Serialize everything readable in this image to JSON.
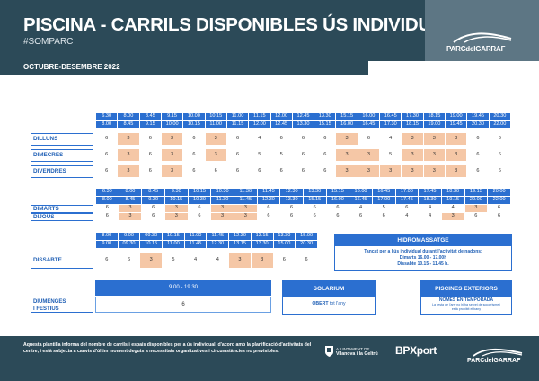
{
  "header": {
    "title": "PISCINA - CARRILS DISPONIBLES ÚS INDIVIDUAL",
    "hashtag": "#SOMPARC",
    "logo": "PARCdelGARRAF",
    "period": "OCTUBRE-DESEMBRE 2022"
  },
  "table1": {
    "starts": [
      "6.30",
      "8.00",
      "8.45",
      "9.15",
      "10.00",
      "10.15",
      "11.00",
      "11.15",
      "12.00",
      "12.45",
      "13.30",
      "15.15",
      "16.00",
      "16.45",
      "17.30",
      "18.15",
      "19.00",
      "19.45",
      "20.30"
    ],
    "ends": [
      "8.00",
      "8.45",
      "9.15",
      "10.00",
      "10.15",
      "11.00",
      "11.15",
      "12.00",
      "12.45",
      "13.30",
      "15.15",
      "16.00",
      "16.45",
      "17.30",
      "18.15",
      "19.00",
      "19.45",
      "20.30",
      "22.00"
    ],
    "rows": [
      {
        "day": "DILLUNS",
        "values": [
          "6",
          "3",
          "6",
          "3",
          "6",
          "3",
          "6",
          "4",
          "6",
          "6",
          "6",
          "3",
          "6",
          "4",
          "3",
          "3",
          "3",
          "6",
          "6"
        ]
      },
      {
        "day": "DIMECRES",
        "values": [
          "6",
          "3",
          "6",
          "3",
          "6",
          "3",
          "6",
          "5",
          "5",
          "6",
          "6",
          "3",
          "3",
          "5",
          "3",
          "3",
          "3",
          "6",
          "6"
        ]
      },
      {
        "day": "DIVENDRES",
        "values": [
          "6",
          "3",
          "6",
          "3",
          "6",
          "6",
          "6",
          "6",
          "6",
          "6",
          "6",
          "3",
          "3",
          "3",
          "3",
          "3",
          "3",
          "6",
          "6"
        ]
      }
    ]
  },
  "table2": {
    "starts": [
      "6.30",
      "8.00",
      "8.45",
      "9.30",
      "10.15",
      "10.30",
      "11.30",
      "11.45",
      "12.30",
      "13.30",
      "15.15",
      "16.00",
      "16.45",
      "17.00",
      "17.45",
      "18.30",
      "19.15",
      "20.00"
    ],
    "ends": [
      "8.00",
      "8.45",
      "9.30",
      "10.15",
      "10.30",
      "11.30",
      "11.45",
      "12.30",
      "13.30",
      "15.15",
      "16.00",
      "16.45",
      "17.00",
      "17.45",
      "18.30",
      "19.15",
      "20.00",
      "22.00"
    ],
    "rows": [
      {
        "day": "DIMARTS",
        "values": [
          "6",
          "3",
          "6",
          "3",
          "6",
          "3",
          "3",
          "6",
          "6",
          "6",
          "6",
          "4",
          "5",
          "6",
          "4",
          "4",
          "3",
          "6"
        ]
      },
      {
        "day": "DIJOUS",
        "values": [
          "6",
          "3",
          "6",
          "3",
          "6",
          "3",
          "3",
          "6",
          "6",
          "6",
          "6",
          "6",
          "6",
          "4",
          "4",
          "3",
          "6",
          "6"
        ]
      }
    ]
  },
  "table3": {
    "starts": [
      "8.00",
      "9.00",
      "09.30",
      "10.15",
      "11.00",
      "11.45",
      "12.30",
      "13.15",
      "13.30",
      "15.00"
    ],
    "ends": [
      "9.00",
      "09.30",
      "10.15",
      "11.00",
      "11.45",
      "12.30",
      "13.15",
      "13.30",
      "15.00",
      "20.30"
    ],
    "rows": [
      {
        "day": "DISSABTE",
        "values": [
          "6",
          "6",
          "3",
          "5",
          "4",
          "4",
          "3",
          "3",
          "6",
          "6"
        ]
      }
    ]
  },
  "hidromassatge": {
    "title": "HIDROMASSATGE",
    "line1": "Tancat per a l'ús individual durant l'activitat de nadons:",
    "line2": "Dimarts 16.00 - 17.00h",
    "line3": "Dissabte 10.15 - 11.45 h."
  },
  "sunday": {
    "hours": "9.00 - 19.30",
    "label_line1": "DIUMENGES",
    "label_line2": "I FESTIUS",
    "value": "6"
  },
  "solarium": {
    "title": "SOLARIUM",
    "text_bold": "OBERT",
    "text_rest": " tot l'any"
  },
  "exteriors": {
    "title": "PISCINES EXTERIORS",
    "line1": "NOMÉS EN TEMPORADA",
    "line2": "La resta de l'any no hi ha servei de socorrisme i",
    "line3": "està prohibit el bany"
  },
  "footer": {
    "text": "Aquesta plantilla informa del nombre de carrils i espais disponibles per a ús individual, d'acord amb la planificació d'activitats del centre, i està subjecta a canvis d'últim moment deguts a necessitats organitzatives i circumstàncies no previsibles.",
    "ajuntament_line1": "AJUNTAMENT DE",
    "ajuntament_line2": "Vilanova i la Geltrú",
    "sponsor": "BPXport",
    "logo": "PARCdelGARRAF"
  },
  "colors": {
    "dark_band": "#2c4a58",
    "blue": "#2b6fd0",
    "highlight": "#f5c7a6"
  }
}
